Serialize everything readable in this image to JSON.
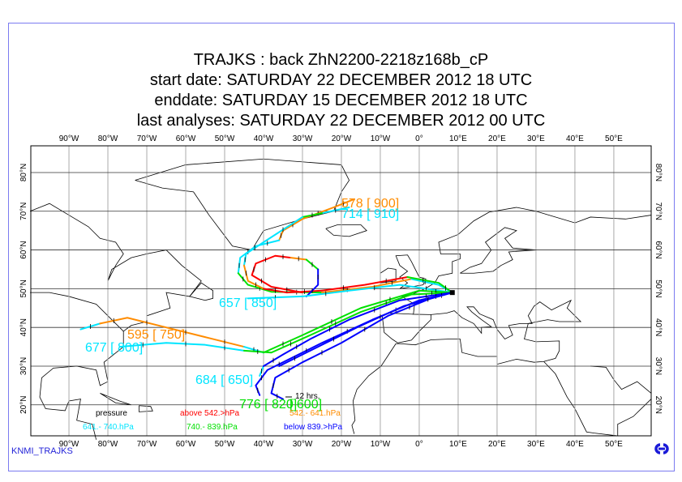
{
  "title": {
    "line1": "TRAJKS : back ZhN2200-2218z168b_cP",
    "line2": "start date:  SATURDAY  22 DECEMBER  2012 18 UTC",
    "line3": "enddate:  SATURDAY  15 DECEMBER  2012 18 UTC",
    "line4": "last analyses:  SATURDAY  22 DECEMBER  2012 00 UTC"
  },
  "axes": {
    "lon_ticks": [
      {
        "lon": -90,
        "label": "90°W"
      },
      {
        "lon": -80,
        "label": "80°W"
      },
      {
        "lon": -70,
        "label": "70°W"
      },
      {
        "lon": -60,
        "label": "60°W"
      },
      {
        "lon": -50,
        "label": "50°W"
      },
      {
        "lon": -40,
        "label": "40°W"
      },
      {
        "lon": -30,
        "label": "30°W"
      },
      {
        "lon": -20,
        "label": "20°W"
      },
      {
        "lon": -10,
        "label": "10°W"
      },
      {
        "lon": 0,
        "label": "0°"
      },
      {
        "lon": 10,
        "label": "10°E"
      },
      {
        "lon": 20,
        "label": "20°E"
      },
      {
        "lon": 30,
        "label": "30°E"
      },
      {
        "lon": 40,
        "label": "40°E"
      },
      {
        "lon": 50,
        "label": "50°E"
      }
    ],
    "lat_ticks": [
      {
        "lat": 80,
        "label": "80°N"
      },
      {
        "lat": 70,
        "label": "70°N"
      },
      {
        "lat": 60,
        "label": "60°N"
      },
      {
        "lat": 50,
        "label": "50°N"
      },
      {
        "lat": 40,
        "label": "40°N"
      },
      {
        "lat": 30,
        "label": "30°N"
      },
      {
        "lat": 20,
        "label": "20°N"
      }
    ],
    "lon_range": [
      -99.8,
      59.6
    ],
    "lat_range": [
      12.0,
      86.9
    ]
  },
  "colors": {
    "red": "#ff0000",
    "orange": "#ff8c00",
    "cyan": "#00e5ff",
    "green": "#00e000",
    "blue": "#0000ff"
  },
  "legend": {
    "title": "pressure",
    "interval_label": "12 hrs.",
    "items": [
      {
        "text": "above  542.>hPa",
        "color": "#ff0000"
      },
      {
        "text": "542.-   641.hPa",
        "color": "#ff8c00"
      },
      {
        "text": "641.-   740.hPa",
        "color": "#00e5ff"
      },
      {
        "text": "740.-   839.hPa",
        "color": "#00e000"
      },
      {
        "text": "below  839.>hPa",
        "color": "#0000ff"
      }
    ]
  },
  "end_point": {
    "lon": 8.5,
    "lat": 49.0
  },
  "trajectory_labels": [
    {
      "text": "578 [ 900]",
      "color": "#ff8c00"
    },
    {
      "text": "714 [ 910]",
      "color": "#00e5ff"
    },
    {
      "text": "657 [ 850]",
      "color": "#00e5ff"
    },
    {
      "text": "595 [ 750]",
      "color": "#ff8c00"
    },
    {
      "text": "677 [ 800]",
      "color": "#00e5ff"
    },
    {
      "text": "684 [ 650]",
      "color": "#00e5ff"
    },
    {
      "text": "776 [ 820]",
      "color": "#00e000"
    },
    {
      "text": "[ 600]",
      "color": "#00e000"
    }
  ],
  "trajectories": [
    {
      "segments": [
        {
          "c": "orange",
          "p": [
            [
              -17,
              73
            ],
            [
              -22,
              71
            ],
            [
              -30,
              68
            ],
            [
              -35,
              65
            ],
            [
              -36,
              62.5
            ]
          ]
        },
        {
          "c": "cyan",
          "p": [
            [
              -36,
              62.5
            ],
            [
              -42,
              61
            ],
            [
              -46,
              58
            ],
            [
              -46.5,
              54
            ]
          ]
        },
        {
          "c": "green",
          "p": [
            [
              -46.5,
              54
            ],
            [
              -44,
              51
            ],
            [
              -38,
              49.2
            ],
            [
              -25,
              49
            ]
          ]
        },
        {
          "c": "orange",
          "p": [
            [
              -25,
              49
            ],
            [
              -12,
              50.5
            ],
            [
              -2,
              52.5
            ]
          ]
        },
        {
          "c": "cyan",
          "p": [
            [
              -2,
              52.5
            ],
            [
              5,
              51
            ],
            [
              8.5,
              49
            ]
          ]
        }
      ]
    },
    {
      "segments": [
        {
          "c": "cyan",
          "p": [
            [
              -18,
              71
            ],
            [
              -25,
              69.5
            ]
          ]
        },
        {
          "c": "green",
          "p": [
            [
              -25,
              69.5
            ],
            [
              -30,
              68.5
            ]
          ]
        },
        {
          "c": "cyan",
          "p": [
            [
              -30,
              68.5
            ],
            [
              -40,
              62
            ],
            [
              -44.5,
              59
            ],
            [
              -45,
              56
            ]
          ]
        },
        {
          "c": "orange",
          "p": [
            [
              -45,
              56
            ],
            [
              -44,
              52
            ],
            [
              -40,
              50
            ]
          ]
        },
        {
          "c": "red",
          "p": [
            [
              -40,
              50
            ],
            [
              -34,
              49
            ],
            [
              -25,
              49.5
            ]
          ]
        },
        {
          "c": "red",
          "p": [
            [
              -25,
              49.5
            ],
            [
              -14,
              51
            ],
            [
              -3,
              53
            ]
          ]
        },
        {
          "c": "green",
          "p": [
            [
              -3,
              53
            ],
            [
              5,
              51.5
            ],
            [
              8.5,
              49
            ]
          ]
        }
      ]
    },
    {
      "segments": [
        {
          "c": "red",
          "p": [
            [
              -30,
              49
            ],
            [
              -38,
              50.5
            ],
            [
              -43,
              53.5
            ],
            [
              -42,
              56.5
            ],
            [
              -37,
              58.5
            ],
            [
              -33,
              58
            ]
          ]
        },
        {
          "c": "orange",
          "p": [
            [
              -33,
              58
            ],
            [
              -29,
              57.5
            ]
          ]
        },
        {
          "c": "green",
          "p": [
            [
              -29,
              57.5
            ],
            [
              -26,
              55
            ]
          ]
        },
        {
          "c": "blue",
          "p": [
            [
              -26,
              55
            ],
            [
              -26,
              51
            ],
            [
              -29,
              48
            ]
          ]
        }
      ]
    },
    {
      "segments": [
        {
          "c": "cyan",
          "p": [
            [
              -44,
              47.5
            ],
            [
              -30,
              48
            ],
            [
              -18,
              49.5
            ],
            [
              -5,
              51
            ],
            [
              8.5,
              49
            ]
          ]
        }
      ]
    },
    {
      "segments": [
        {
          "c": "cyan",
          "p": [
            [
              -87,
              39.5
            ],
            [
              -82,
              41
            ]
          ]
        },
        {
          "c": "orange",
          "p": [
            [
              -82,
              41
            ],
            [
              -75,
              42.5
            ],
            [
              -65,
              40
            ],
            [
              -55,
              37.5
            ],
            [
              -45,
              35
            ]
          ]
        },
        {
          "c": "cyan",
          "p": [
            [
              -45,
              35
            ],
            [
              -40,
              33.5
            ]
          ]
        },
        {
          "c": "green",
          "p": [
            [
              -40,
              33.5
            ],
            [
              -30,
              38
            ],
            [
              -15,
              45
            ],
            [
              0,
              49.5
            ],
            [
              8.5,
              49
            ]
          ]
        }
      ]
    },
    {
      "segments": [
        {
          "c": "cyan",
          "p": [
            [
              -77,
              35
            ],
            [
              -65,
              36
            ],
            [
              -55,
              35.5
            ],
            [
              -45,
              34
            ]
          ]
        },
        {
          "c": "green",
          "p": [
            [
              -45,
              34
            ],
            [
              -38,
              33.5
            ],
            [
              -28,
              38
            ],
            [
              -15,
              44
            ],
            [
              -2,
              48.5
            ],
            [
              8.5,
              49
            ]
          ]
        }
      ]
    },
    {
      "segments": [
        {
          "c": "cyan",
          "p": [
            [
              -41,
              27.5
            ],
            [
              -40,
              30
            ]
          ]
        },
        {
          "c": "blue",
          "p": [
            [
              -40,
              30
            ],
            [
              -35,
              33
            ],
            [
              -28,
              37
            ],
            [
              -18,
              42
            ],
            [
              -5,
              47
            ],
            [
              8.5,
              49
            ]
          ]
        }
      ]
    },
    {
      "segments": [
        {
          "c": "blue",
          "p": [
            [
              -41,
              22.5
            ],
            [
              -42,
              25
            ],
            [
              -39,
              29
            ],
            [
              -33,
              32
            ],
            [
              -25,
              36
            ],
            [
              -12,
              42
            ],
            [
              0,
              47
            ],
            [
              8.5,
              49
            ]
          ]
        }
      ]
    },
    {
      "segments": [
        {
          "c": "blue",
          "p": [
            [
              -35,
              21.5
            ],
            [
              -38,
              23
            ],
            [
              -37,
              27
            ],
            [
              -30,
              31
            ],
            [
              -20,
              36
            ],
            [
              -8,
              43
            ],
            [
              3,
              47.5
            ],
            [
              8.5,
              49
            ]
          ]
        }
      ]
    },
    {
      "segments": [
        {
          "c": "blue",
          "p": [
            [
              -36,
              30
            ],
            [
              -28,
              34
            ],
            [
              -16,
              40
            ],
            [
              -4,
              45.5
            ],
            [
              8.5,
              49
            ]
          ]
        }
      ]
    }
  ]
}
